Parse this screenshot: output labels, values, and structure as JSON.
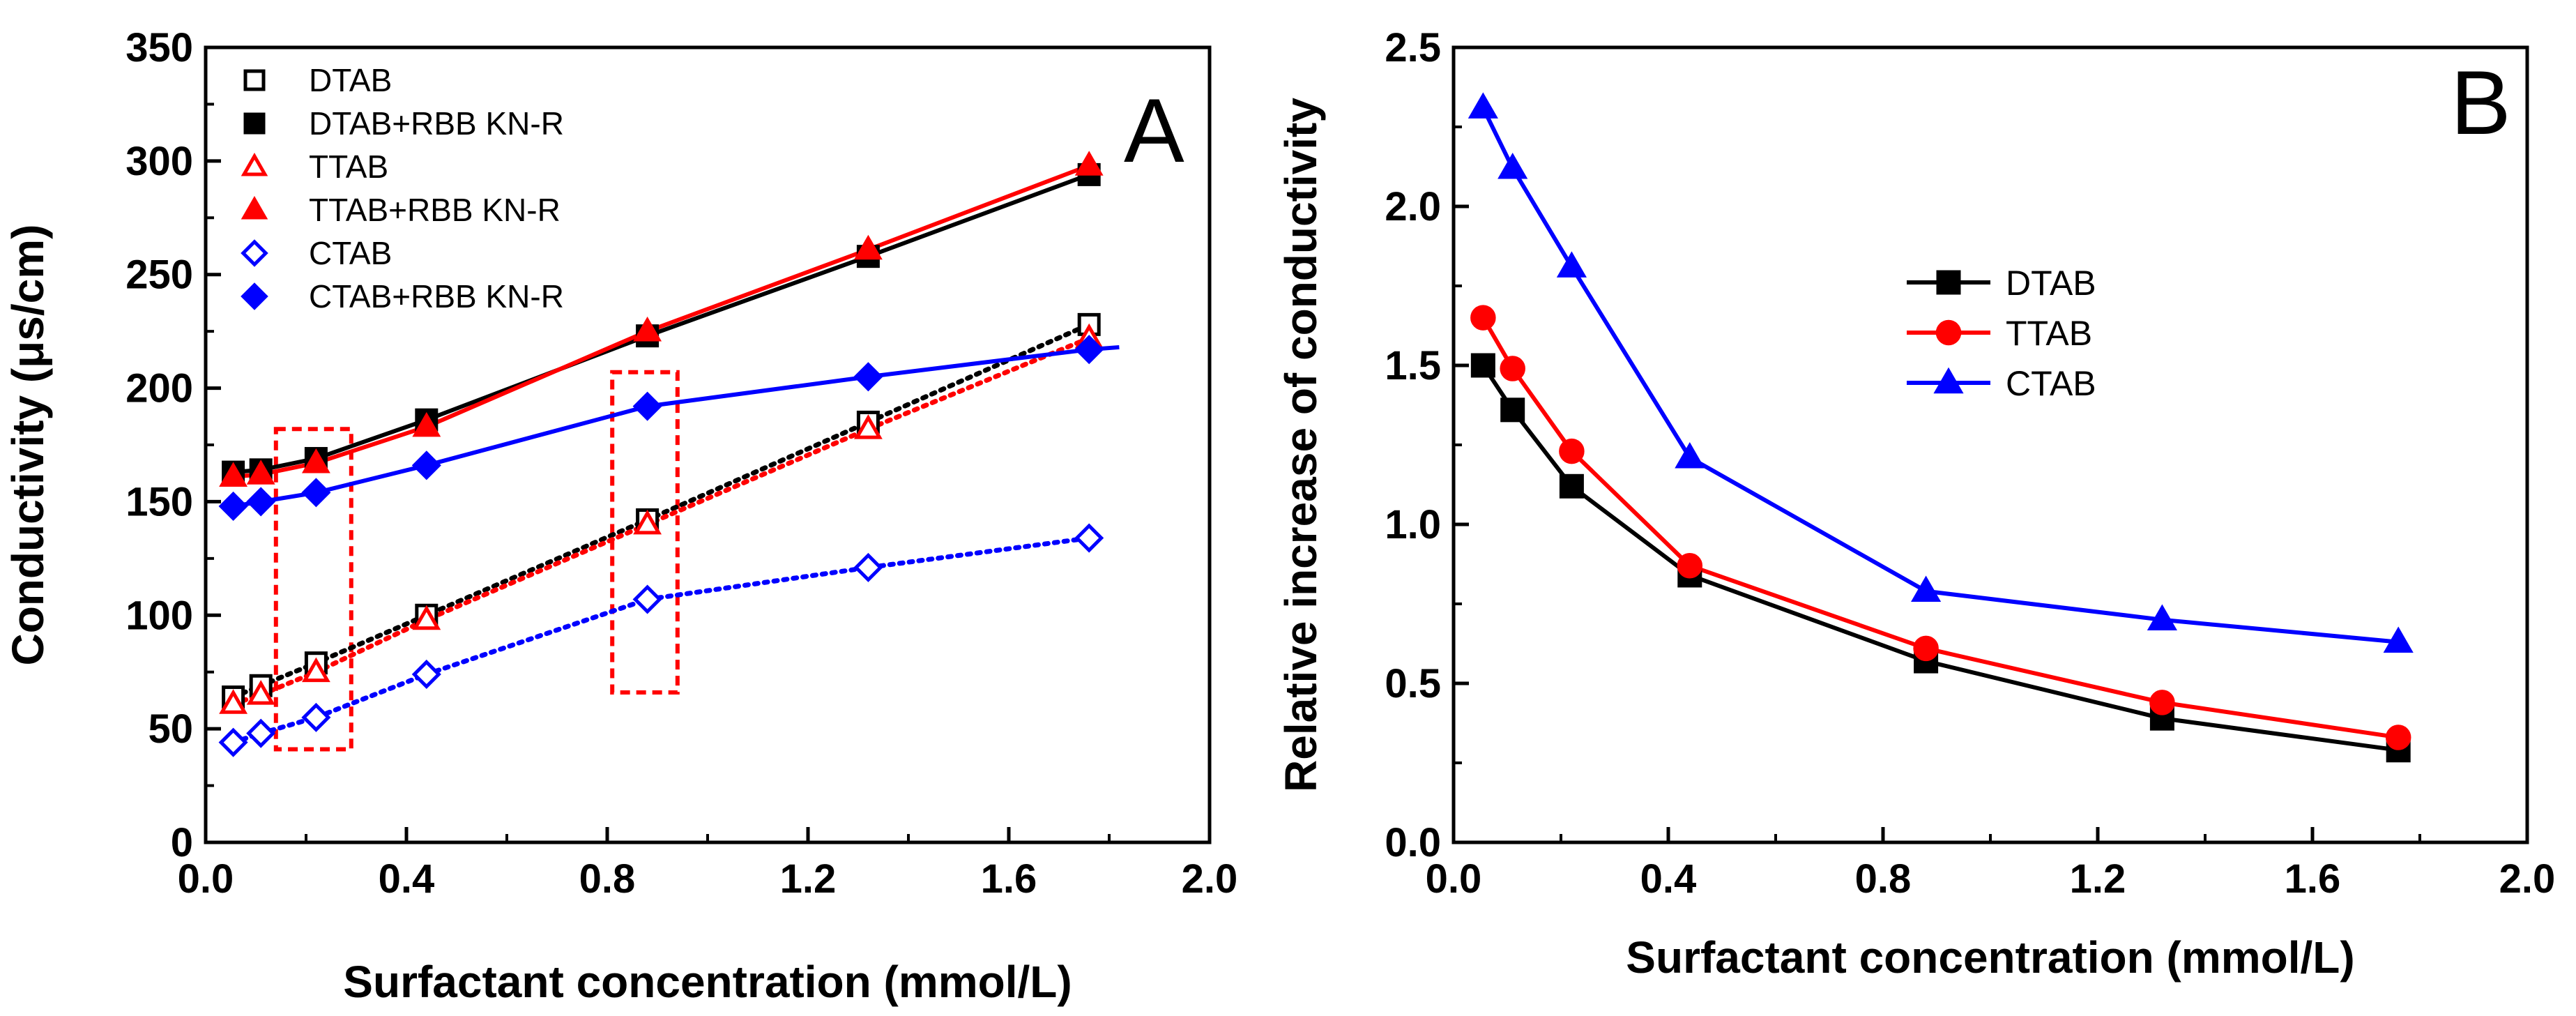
{
  "chart_data": [
    {
      "type": "line",
      "panel": "A",
      "xlabel": "Surfactant concentration (mmol/L)",
      "ylabel": "Conductivity (μs/cm)",
      "xlim": [
        0.0,
        2.0
      ],
      "ylim": [
        0,
        350
      ],
      "xticks": [
        "0.0",
        "0.4",
        "0.8",
        "1.2",
        "1.6",
        "2.0"
      ],
      "yticks": [
        "0",
        "50",
        "100",
        "150",
        "200",
        "250",
        "300",
        "350"
      ],
      "legend_position": "top-left",
      "series": [
        {
          "name": "DTAB",
          "color": "#000000",
          "marker": "square",
          "filled": false,
          "line": "dotted",
          "x": [
            0.055,
            0.11,
            0.22,
            0.44,
            0.88,
            1.32,
            1.76
          ],
          "y": [
            64,
            69,
            79,
            100,
            142,
            185,
            228
          ]
        },
        {
          "name": "DTAB+RBB KN-R",
          "color": "#000000",
          "marker": "square",
          "filled": true,
          "line": "solid",
          "x": [
            0.055,
            0.11,
            0.22,
            0.44,
            0.88,
            1.32,
            1.76
          ],
          "y": [
            163,
            164,
            169,
            186,
            223,
            258,
            294
          ]
        },
        {
          "name": "TTAB",
          "color": "#ff0000",
          "marker": "triangle",
          "filled": false,
          "line": "dotted",
          "x": [
            0.055,
            0.11,
            0.22,
            0.44,
            0.88,
            1.32,
            1.76
          ],
          "y": [
            61,
            65,
            75,
            98,
            140,
            182,
            222
          ]
        },
        {
          "name": "TTAB+RBB KN-R",
          "color": "#ff0000",
          "marker": "triangle",
          "filled": true,
          "line": "solid",
          "x": [
            0.055,
            0.11,
            0.22,
            0.44,
            0.88,
            1.32,
            1.76
          ],
          "y": [
            161,
            162,
            167,
            183,
            225,
            261,
            298
          ]
        },
        {
          "name": "CTAB",
          "color": "#0000ff",
          "marker": "diamond",
          "filled": false,
          "line": "dotted",
          "x": [
            0.055,
            0.11,
            0.22,
            0.44,
            0.88,
            1.32,
            1.76
          ],
          "y": [
            44,
            48,
            55,
            74,
            107,
            121,
            134
          ]
        },
        {
          "name": "CTAB+RBB KN-R",
          "color": "#0000ff",
          "marker": "diamond",
          "filled": true,
          "line": "solid",
          "x": [
            0.055,
            0.11,
            0.22,
            0.44,
            0.88,
            1.32,
            1.76
          ],
          "y": [
            148,
            150,
            154,
            166,
            192,
            205,
            217
          ]
        }
      ],
      "annotations": [
        {
          "type": "dashed-box",
          "color": "#ff0000",
          "x_range": [
            0.14,
            0.29
          ],
          "y_range": [
            41,
            182
          ]
        },
        {
          "type": "dashed-box",
          "color": "#ff0000",
          "x_range": [
            0.81,
            0.94
          ],
          "y_range": [
            66,
            207
          ]
        }
      ]
    },
    {
      "type": "line",
      "panel": "B",
      "xlabel": "Surfactant concentration (mmol/L)",
      "ylabel": "Relative increase of conductivity",
      "xlim": [
        0.0,
        2.0
      ],
      "ylim": [
        0.0,
        2.5
      ],
      "xticks": [
        "0.0",
        "0.4",
        "0.8",
        "1.2",
        "1.6",
        "2.0"
      ],
      "yticks": [
        "0.0",
        "0.5",
        "1.0",
        "1.5",
        "2.0",
        "2.5"
      ],
      "legend_position": "center",
      "series": [
        {
          "name": "DTAB",
          "color": "#000000",
          "marker": "square",
          "x": [
            0.055,
            0.11,
            0.22,
            0.44,
            0.88,
            1.32,
            1.76
          ],
          "y": [
            1.5,
            1.36,
            1.12,
            0.84,
            0.57,
            0.39,
            0.29
          ]
        },
        {
          "name": "TTAB",
          "color": "#ff0000",
          "marker": "circle",
          "x": [
            0.055,
            0.11,
            0.22,
            0.44,
            0.88,
            1.32,
            1.76
          ],
          "y": [
            1.65,
            1.49,
            1.23,
            0.87,
            0.61,
            0.44,
            0.33
          ]
        },
        {
          "name": "CTAB",
          "color": "#0000ff",
          "marker": "triangle",
          "x": [
            0.055,
            0.11,
            0.22,
            0.44,
            0.88,
            1.32,
            1.76
          ],
          "y": [
            2.31,
            2.12,
            1.81,
            1.21,
            0.79,
            0.7,
            0.63
          ]
        }
      ]
    }
  ]
}
